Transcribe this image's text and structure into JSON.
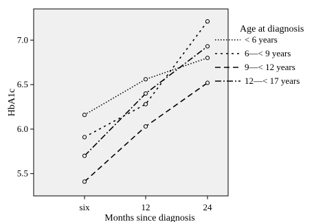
{
  "chart_data": {
    "type": "line",
    "xlabel": "Months since diagnosis",
    "ylabel": "HbA1c",
    "categories": [
      "six",
      "12",
      "24"
    ],
    "yticks": [
      "5.5",
      "6.0",
      "6.5",
      "7.0"
    ],
    "ylim": [
      5.25,
      7.35
    ],
    "grid": false,
    "plot_background": "#f0f0f0",
    "legend": {
      "title": "Age at diagnosis",
      "placement": "right"
    },
    "series": [
      {
        "name": "< 6 years",
        "values": [
          6.16,
          6.56,
          6.8
        ],
        "dash": "dotted"
      },
      {
        "name": "6—< 9 years",
        "values": [
          5.91,
          6.28,
          7.21
        ],
        "dash": "short-dash"
      },
      {
        "name": "9—< 12 years",
        "values": [
          5.41,
          6.03,
          6.52
        ],
        "dash": "long-dash"
      },
      {
        "name": "12—< 17 years",
        "values": [
          5.7,
          6.4,
          6.93
        ],
        "dash": "dash-dot"
      }
    ]
  }
}
